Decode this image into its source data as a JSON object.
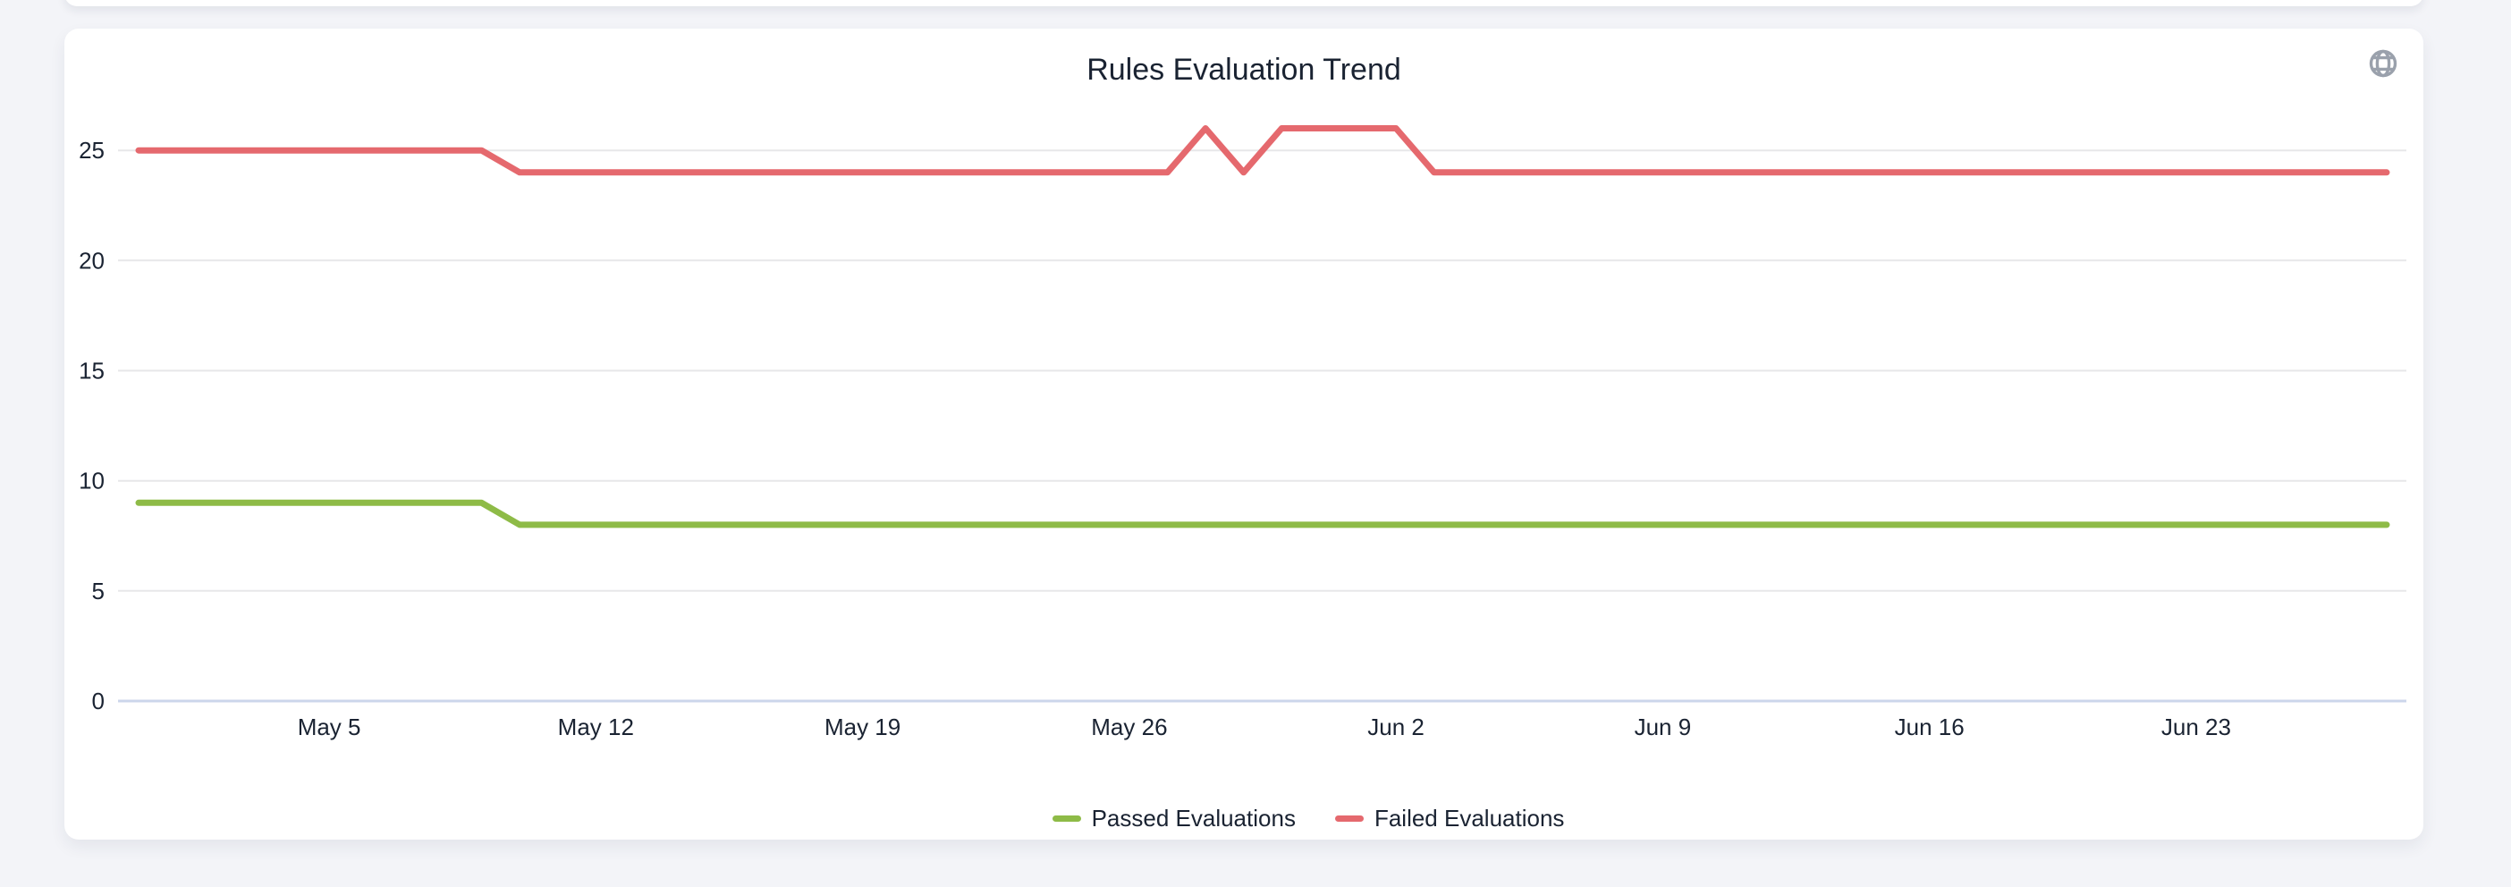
{
  "chart_data": {
    "type": "line",
    "title": "Rules Evaluation Trend",
    "legend_position": "bottom",
    "grid": "horizontal",
    "x_axis": {
      "unit": "days",
      "day0_date": "Apr 30",
      "domain_days": [
        0,
        59
      ],
      "ticks": [
        {
          "day": 5,
          "label": "May 5"
        },
        {
          "day": 12,
          "label": "May 12"
        },
        {
          "day": 19,
          "label": "May 19"
        },
        {
          "day": 26,
          "label": "May 26"
        },
        {
          "day": 33,
          "label": "Jun 2"
        },
        {
          "day": 40,
          "label": "Jun 9"
        },
        {
          "day": 47,
          "label": "Jun 16"
        },
        {
          "day": 54,
          "label": "Jun 23"
        }
      ]
    },
    "y_axis": {
      "ticks": [
        0,
        5,
        10,
        15,
        20,
        25
      ],
      "range": [
        0,
        27
      ]
    },
    "series": [
      {
        "name": "Passed Evaluations",
        "color": "#8EBB47",
        "points": [
          [
            0,
            9
          ],
          [
            9,
            9
          ],
          [
            10,
            8
          ],
          [
            59,
            8
          ]
        ]
      },
      {
        "name": "Failed Evaluations",
        "color": "#E5696E",
        "points": [
          [
            0,
            25
          ],
          [
            9,
            25
          ],
          [
            10,
            24
          ],
          [
            27,
            24
          ],
          [
            28,
            26
          ],
          [
            29,
            24
          ],
          [
            30,
            26
          ],
          [
            33,
            26
          ],
          [
            34,
            24
          ],
          [
            59,
            24
          ]
        ]
      }
    ],
    "colors": {
      "grid_line": "#E7E7E9",
      "axis_line": "#CCD6EB",
      "tick_text": "#1A2332",
      "title_text": "#1A2332",
      "icon": "#9AA1AC",
      "card_bg": "#FFFFFF",
      "page_bg": "#F3F4F8"
    }
  },
  "icons": {
    "top_right": "globe"
  }
}
